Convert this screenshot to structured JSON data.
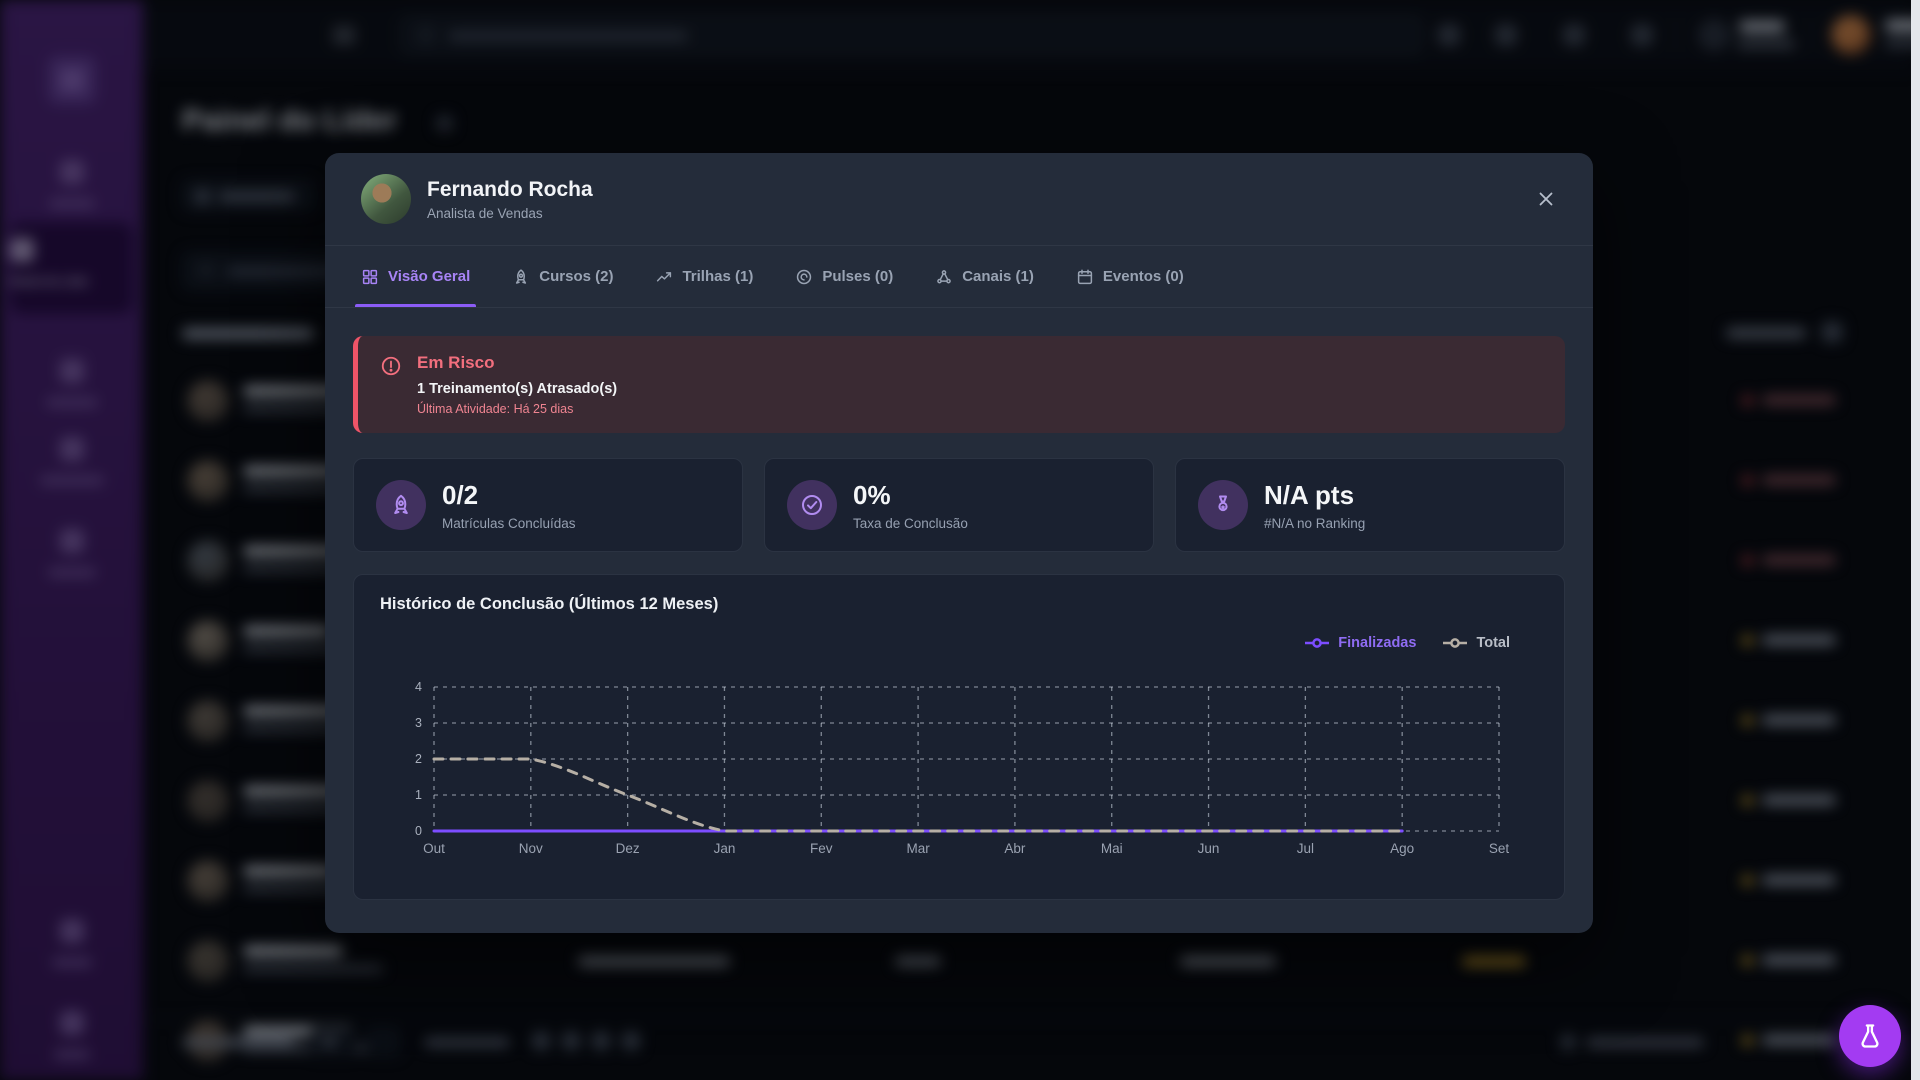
{
  "background": {
    "page_title": "Painel do Líder",
    "sidebar_active_label": "Painel do Líder",
    "row_status_dots": [
      "red",
      "red",
      "red",
      "yellow",
      "yellow",
      "yellow",
      "yellow",
      "yellow",
      "yellow"
    ],
    "status_colors": {
      "red": "#a83a40",
      "yellow": "#c9a02c"
    }
  },
  "modal": {
    "user": {
      "name": "Fernando Rocha",
      "role": "Analista de Vendas"
    },
    "close_icon": "close",
    "tabs": [
      {
        "icon": "grid",
        "label": "Visão Geral",
        "active": true
      },
      {
        "icon": "rocket",
        "label": "Cursos (2)",
        "active": false
      },
      {
        "icon": "trend",
        "label": "Trilhas (1)",
        "active": false
      },
      {
        "icon": "pulse",
        "label": "Pulses (0)",
        "active": false
      },
      {
        "icon": "hub",
        "label": "Canais (1)",
        "active": false
      },
      {
        "icon": "calendar",
        "label": "Eventos (0)",
        "active": false
      }
    ],
    "risk": {
      "icon": "alert-circle",
      "title": "Em Risco",
      "subtitle": "1 Treinamento(s) Atrasado(s)",
      "last_activity": "Última Atividade: Há 25 dias"
    },
    "stats": [
      {
        "icon": "rocket",
        "value": "0/2",
        "label": "Matrículas Concluídas"
      },
      {
        "icon": "check-circle",
        "value": "0%",
        "label": "Taxa de Conclusão"
      },
      {
        "icon": "medal",
        "value": "N/A pts",
        "label": "#N/A no Ranking"
      }
    ],
    "chart_title": "Histórico de Conclusão (Últimos 12 Meses)"
  },
  "chart_data": {
    "type": "line",
    "title": "Histórico de Conclusão (Últimos 12 Meses)",
    "categories": [
      "Out",
      "Nov",
      "Dez",
      "Jan",
      "Fev",
      "Mar",
      "Abr",
      "Mai",
      "Jun",
      "Jul",
      "Ago",
      "Set"
    ],
    "series": [
      {
        "name": "Finalizadas",
        "color": "#7c4dff",
        "text_color": "#8f6cf3",
        "dashed": false,
        "values": [
          0,
          0,
          0,
          0,
          0,
          0,
          0,
          0,
          0,
          0,
          0
        ]
      },
      {
        "name": "Total",
        "color": "#b6afa5",
        "text_color": "#b9bec7",
        "dashed": true,
        "values": [
          2,
          2,
          1,
          0,
          0,
          0,
          0,
          0,
          0,
          0,
          0
        ]
      }
    ],
    "ylim": [
      0,
      4
    ],
    "yticks": [
      0,
      1,
      2,
      3,
      4
    ],
    "grid": true,
    "grid_style": "dashed",
    "legend_position": "top-right",
    "note_last_category_has_no_data": true
  },
  "fab": {
    "icon": "flask"
  }
}
